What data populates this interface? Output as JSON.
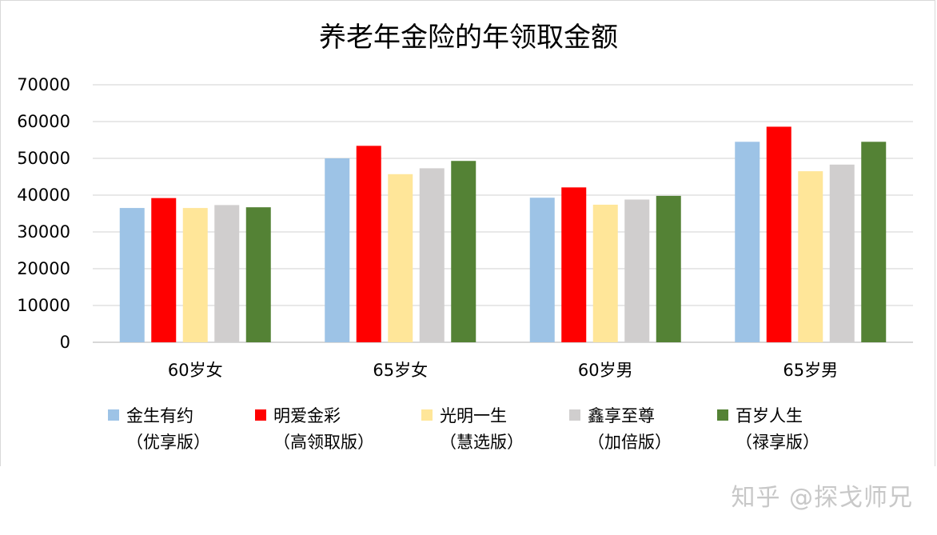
{
  "chart_data": {
    "type": "bar",
    "title": "养老年金险的年领取金额",
    "categories": [
      "60岁女",
      "65岁女",
      "60岁男",
      "65岁男"
    ],
    "ylim": [
      0,
      70000
    ],
    "yticks": [
      "0",
      "10000",
      "20000",
      "30000",
      "40000",
      "50000",
      "60000",
      "70000"
    ],
    "grid": true,
    "legend_position": "bottom",
    "series": [
      {
        "name": "金生有约",
        "subname": "（优享版）",
        "color": "#9dc3e6",
        "values": [
          36500,
          50000,
          39300,
          54500
        ]
      },
      {
        "name": "明爱金彩",
        "subname": "（高领取版）",
        "color": "#ff0000",
        "values": [
          39200,
          53400,
          42100,
          58600
        ]
      },
      {
        "name": "光明一生",
        "subname": "（慧选版）",
        "color": "#ffe699",
        "values": [
          36500,
          45700,
          37400,
          46500
        ]
      },
      {
        "name": "鑫享至尊",
        "subname": "（加倍版）",
        "color": "#d0cece",
        "values": [
          37300,
          47300,
          38800,
          48300
        ]
      },
      {
        "name": "百岁人生",
        "subname": "（禄享版）",
        "color": "#548235",
        "values": [
          36700,
          49300,
          39800,
          54500
        ]
      }
    ]
  },
  "watermark": "知乎 @探戈师兄"
}
